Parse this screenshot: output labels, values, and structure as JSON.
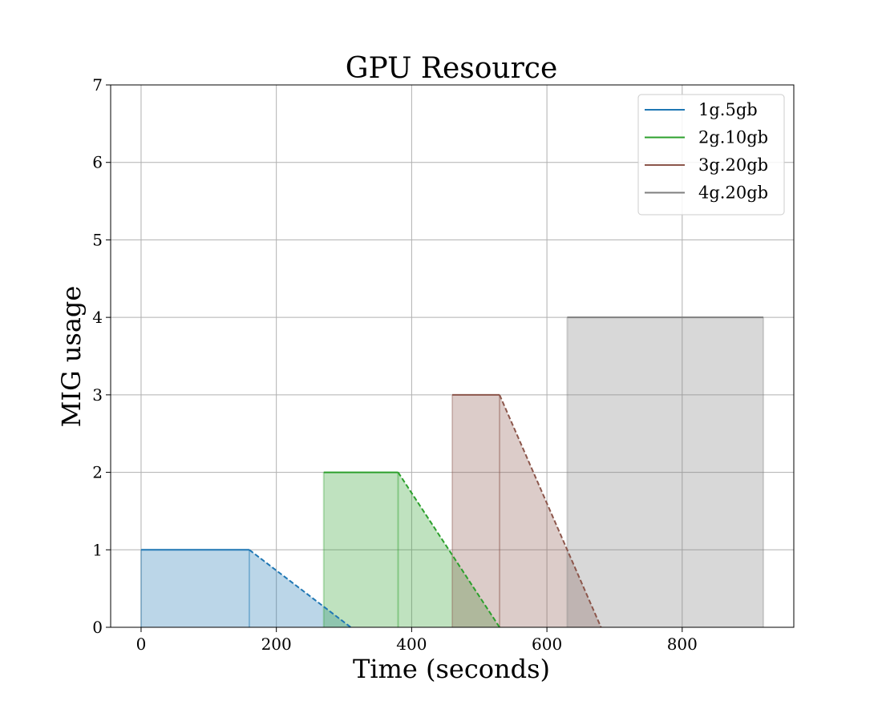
{
  "chart_data": {
    "type": "area",
    "title": "GPU Resource",
    "xlabel": "Time (seconds)",
    "ylabel": "MIG usage",
    "xlim": [
      -45,
      965
    ],
    "ylim": [
      0,
      7
    ],
    "xticks": [
      0,
      200,
      400,
      600,
      800
    ],
    "yticks": [
      0,
      1,
      2,
      3,
      4,
      5,
      6,
      7
    ],
    "grid": true,
    "legend_position": "top-right",
    "series": [
      {
        "name": "1g.5gb",
        "color": "#1f77b4",
        "solid": [
          [
            0,
            1
          ],
          [
            160,
            1
          ]
        ],
        "dashed": [
          [
            160,
            1
          ],
          [
            310,
            0
          ]
        ],
        "divider_x": 160
      },
      {
        "name": "2g.10gb",
        "color": "#2ca02c",
        "solid": [
          [
            270,
            2
          ],
          [
            380,
            2
          ]
        ],
        "dashed": [
          [
            380,
            2
          ],
          [
            530,
            0
          ]
        ],
        "divider_x": 380
      },
      {
        "name": "3g.20gb",
        "color": "#8c564b",
        "solid": [
          [
            460,
            3
          ],
          [
            530,
            3
          ]
        ],
        "dashed": [
          [
            530,
            3
          ],
          [
            680,
            0
          ]
        ],
        "divider_x": 530
      },
      {
        "name": "4g.20gb",
        "color": "#7f7f7f",
        "solid": [
          [
            630,
            4
          ],
          [
            920,
            4
          ]
        ],
        "dashed": [],
        "divider_x": null
      }
    ]
  }
}
